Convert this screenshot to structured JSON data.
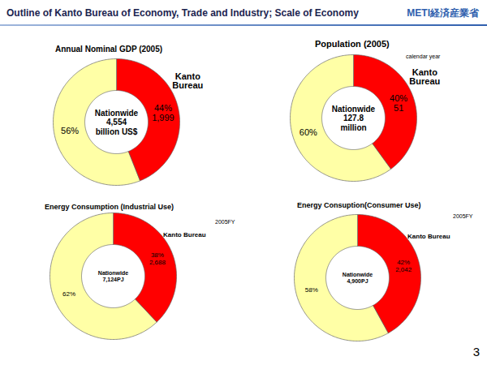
{
  "header": {
    "title": "Outline of Kanto Bureau of Economy, Trade and Industry; Scale of Economy",
    "logo": "METI経済産業省"
  },
  "page_number": "3",
  "chart_data": [
    {
      "type": "donut",
      "title": "Annual Nominal GDP (2005)",
      "categories": [
        "Kanto Bureau",
        null
      ],
      "values": [
        44,
        56
      ],
      "value_labels": [
        "44%",
        "56%"
      ],
      "amounts": [
        1999,
        null
      ],
      "amount_labels": [
        "1,999",
        null
      ],
      "center_text": [
        "Nationwide",
        "4,554",
        "billion US$"
      ],
      "colors": [
        "#ff0000",
        "#ffffa6"
      ],
      "data_labels": true
    },
    {
      "type": "donut",
      "title": "Population (2005)",
      "subtitle": "calendar year",
      "categories": [
        "Kanto Bureau",
        null
      ],
      "values": [
        40,
        60
      ],
      "value_labels": [
        "40%",
        "60%"
      ],
      "amounts": [
        51,
        null
      ],
      "amount_labels": [
        "51",
        null
      ],
      "center_text": [
        "Nationwide",
        "127.8",
        "million"
      ],
      "colors": [
        "#ff0000",
        "#ffffa6"
      ],
      "data_labels": true
    },
    {
      "type": "donut",
      "title": "Energy Consumption (Industrial Use)",
      "subtitle": "2005FY",
      "categories": [
        "Kanto Bureau",
        null
      ],
      "values": [
        38,
        62
      ],
      "value_labels": [
        "38%",
        "62%"
      ],
      "amounts": [
        2688,
        null
      ],
      "amount_labels": [
        "2,688",
        null
      ],
      "center_text": [
        "Nationwide",
        "7,124PJ"
      ],
      "colors": [
        "#ff0000",
        "#ffffa6"
      ],
      "data_labels": true
    },
    {
      "type": "donut",
      "title": "Energy Consuption(Consumer Use)",
      "subtitle": "2005FY",
      "categories": [
        "Kanto Bureau",
        null
      ],
      "values": [
        42,
        58
      ],
      "value_labels": [
        "42%",
        "58%"
      ],
      "amounts": [
        2042,
        null
      ],
      "amount_labels": [
        "2,042",
        null
      ],
      "center_text": [
        "Nationwide",
        "4,900PJ"
      ],
      "colors": [
        "#ff0000",
        "#ffffa6"
      ],
      "data_labels": true
    }
  ]
}
